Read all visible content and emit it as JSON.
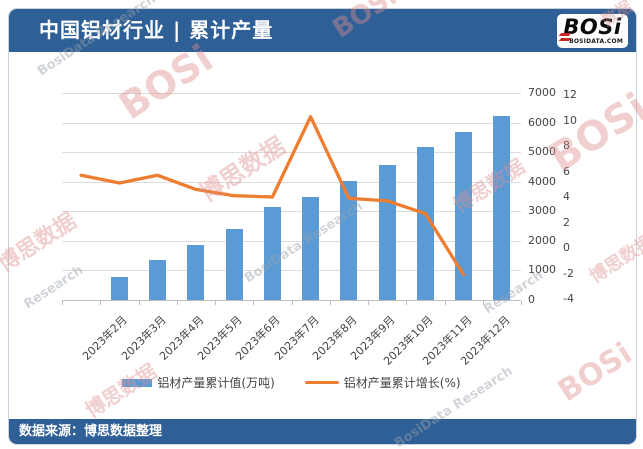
{
  "header": {
    "title": "中国铝材行业 | 累计产量"
  },
  "logo": {
    "text": "BOSi",
    "subtext": "BOSIDATA.COM"
  },
  "footer": {
    "source": "数据来源：博思数据整理"
  },
  "colors": {
    "band_blue": "#2E5F96",
    "bar_blue": "#5B9BD5",
    "line_orange": "#ED7D31",
    "logo_red": "#C4281E",
    "watermark_red": "#DE8F8F",
    "watermark_gray": "#9AA2AB"
  },
  "watermarks": [
    {
      "text": "BosiData Research",
      "variant": "gray"
    },
    {
      "text": "BOSi",
      "variant": "red"
    },
    {
      "text": "博思数据",
      "variant": "red"
    },
    {
      "text": "Research",
      "variant": "gray"
    },
    {
      "text": "BOSi",
      "variant": "red"
    },
    {
      "text": "博思数据",
      "variant": "red"
    },
    {
      "text": "BosiData Research",
      "variant": "gray"
    },
    {
      "text": "BOSi",
      "variant": "red"
    },
    {
      "text": "博思数据",
      "variant": "red"
    },
    {
      "text": "博思数据",
      "variant": "red"
    },
    {
      "text": "Research",
      "variant": "gray"
    },
    {
      "text": "博思数据",
      "variant": "red"
    },
    {
      "text": "BosiData Research",
      "variant": "gray"
    },
    {
      "text": "BOSi",
      "variant": "red"
    },
    {
      "text": "数据",
      "variant": "red"
    }
  ],
  "chart_data": {
    "type": "combo",
    "title": "中国铝材行业 | 累计产量",
    "categories": [
      "2023年2月",
      "2023年3月",
      "2023年4月",
      "2023年5月",
      "2023年6月",
      "2023年7月",
      "2023年8月",
      "2023年9月",
      "2023年10月",
      "2023年11月",
      "2023年12月"
    ],
    "series": [
      {
        "name": "铝材产量累计值(万吨)",
        "type": "bar",
        "axis": "left",
        "color": "#5B9BD5",
        "values": [
          770,
          1360,
          1870,
          2390,
          3130,
          3470,
          4010,
          4560,
          5160,
          5670,
          6240
        ]
      },
      {
        "name": "铝材产量累计增长(%)",
        "type": "line",
        "axis": "right",
        "color": "#ED7D31",
        "values": [
          5.7,
          5.1,
          5.7,
          4.6,
          4.1,
          4.0,
          10.3,
          3.9,
          3.7,
          2.7,
          -2.1
        ]
      }
    ],
    "left_axis": {
      "min": 0,
      "max": 7000,
      "step": 1000,
      "labels": [
        "0",
        "1000",
        "2000",
        "3000",
        "4000",
        "5000",
        "6000",
        "7000"
      ]
    },
    "right_axis": {
      "min": -4,
      "max": 12,
      "step": 2,
      "labels": [
        "-4",
        "-2",
        "0",
        "2",
        "4",
        "6",
        "8",
        "10",
        "12"
      ]
    },
    "grid": true,
    "legend_position": "bottom",
    "layout_note": "12 category slots: bars drawn in slots 2-12, line points in slots 1-11 (line offset one slot left of bars, as in source image)"
  }
}
